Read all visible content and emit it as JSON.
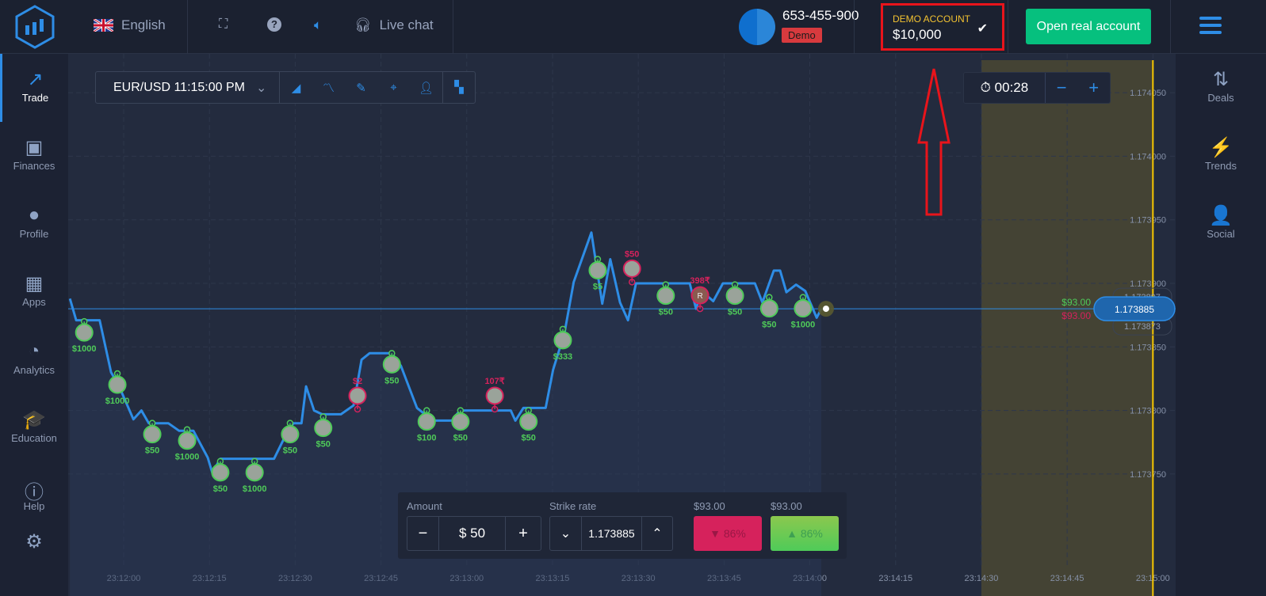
{
  "header": {
    "language": "English",
    "live_chat": "Live chat",
    "account_id": "653-455-900",
    "account_badge": "Demo",
    "demo_label": "DEMO ACCOUNT",
    "balance": "$10,000",
    "open_real": "Open real account"
  },
  "left_nav": [
    {
      "label": "Trade",
      "icon": "trend-up-icon",
      "glyph": "↗"
    },
    {
      "label": "Finances",
      "icon": "banknote-icon",
      "glyph": "▣"
    },
    {
      "label": "Profile",
      "icon": "user-icon",
      "glyph": "●"
    },
    {
      "label": "Apps",
      "icon": "grid-icon",
      "glyph": "▦"
    },
    {
      "label": "Analytics",
      "icon": "pie-chart-icon",
      "glyph": "◔"
    },
    {
      "label": "Education",
      "icon": "graduation-cap-icon",
      "glyph": "🎓"
    },
    {
      "label": "Help",
      "icon": "info-icon",
      "glyph": "ⓘ"
    }
  ],
  "right_nav": [
    {
      "label": "Deals",
      "icon": "arrows-up-down-icon",
      "glyph": "⇅"
    },
    {
      "label": "Trends",
      "icon": "lightning-icon",
      "glyph": "⚡"
    },
    {
      "label": "Social",
      "icon": "user-plus-icon",
      "glyph": "👤"
    }
  ],
  "toolbar": {
    "pair": "EUR/USD 11:15:00 PM"
  },
  "timer": {
    "value": "00:28",
    "minus": "−",
    "plus": "+"
  },
  "trade_panel": {
    "amount_label": "Amount",
    "amount": "$ 50",
    "strike_label": "Strike rate",
    "strike": "1.173885",
    "down_payout": "$93.00",
    "up_payout": "$93.00",
    "down_pct": "86%",
    "up_pct": "86%"
  },
  "colors": {
    "accent": "#2e8de6",
    "green": "#4fcb59",
    "red": "#d6225c",
    "expiry": "#f7c600"
  },
  "chart_data": {
    "type": "line",
    "x_ticks": [
      "23:12:00",
      "23:12:15",
      "23:12:30",
      "23:12:45",
      "23:13:00",
      "23:13:15",
      "23:13:30",
      "23:13:45",
      "23:14:00",
      "23:14:15",
      "23:14:30",
      "23:14:45",
      "23:15:00"
    ],
    "y_ticks": [
      "1.174050",
      "1.174000",
      "1.173950",
      "1.173900",
      "1.173850",
      "1.173800",
      "1.173750"
    ],
    "current_price": "1.173885",
    "upper_strike": "1.173897",
    "lower_strike": "1.173873",
    "up_payout": "$93.00",
    "down_payout": "$93.00",
    "expiry_time": "23:15:00",
    "purchase_zone_start": "23:14:30",
    "series": [
      [
        "23:11:50.6",
        1.173888
      ],
      [
        "23:11:51.7",
        1.173871
      ],
      [
        "23:11:55.8",
        1.173871
      ],
      [
        "23:11:57.8",
        1.17383
      ],
      [
        "23:11:59.2",
        1.173819
      ],
      [
        "23:12:01.7",
        1.173793
      ],
      [
        "23:12:03.1",
        1.1738
      ],
      [
        "23:12:04.4",
        1.17379
      ],
      [
        "23:12:07.8",
        1.17379
      ],
      [
        "23:12:09.7",
        1.173784
      ],
      [
        "23:12:12.2",
        1.173784
      ],
      [
        "23:12:14.7",
        1.173763
      ],
      [
        "23:12:15.5",
        1.173751
      ],
      [
        "23:12:16.9",
        1.173762
      ],
      [
        "23:12:26.3",
        1.173762
      ],
      [
        "23:12:28.6",
        1.173783
      ],
      [
        "23:12:29.7",
        1.17379
      ],
      [
        "23:12:31.1",
        1.17379
      ],
      [
        "23:12:31.9",
        1.173819
      ],
      [
        "23:12:33.3",
        1.1738
      ],
      [
        "23:12:34.7",
        1.173797
      ],
      [
        "23:12:38.0",
        1.173797
      ],
      [
        "23:12:40.2",
        1.173804
      ],
      [
        "23:12:41.6",
        1.17384
      ],
      [
        "23:12:43.0",
        1.173845
      ],
      [
        "23:12:46.9",
        1.173845
      ],
      [
        "23:12:48.5",
        1.173835
      ],
      [
        "23:12:51.3",
        1.173802
      ],
      [
        "23:12:54.1",
        1.173792
      ],
      [
        "23:12:57.4",
        1.173792
      ],
      [
        "23:12:58.8",
        1.1738
      ],
      [
        "23:13:07.7",
        1.1738
      ],
      [
        "23:13:08.5",
        1.173792
      ],
      [
        "23:13:09.9",
        1.173802
      ],
      [
        "23:13:13.8",
        1.173802
      ],
      [
        "23:13:15.1",
        1.173832
      ],
      [
        "23:13:17.1",
        1.173861
      ],
      [
        "23:13:18.7",
        1.173901
      ],
      [
        "23:13:21.8",
        1.17394
      ],
      [
        "23:13:23.7",
        1.173884
      ],
      [
        "23:13:25.1",
        1.173919
      ],
      [
        "23:13:26.8",
        1.173885
      ],
      [
        "23:13:28.2",
        1.173871
      ],
      [
        "23:13:29.6",
        1.1739
      ],
      [
        "23:13:39.0",
        1.1739
      ],
      [
        "23:13:40.1",
        1.17388
      ],
      [
        "23:13:41.1",
        1.173894
      ],
      [
        "23:13:43.1",
        1.173886
      ],
      [
        "23:13:44.8",
        1.1739
      ],
      [
        "23:13:50.4",
        1.1739
      ],
      [
        "23:13:51.7",
        1.173885
      ],
      [
        "23:13:53.7",
        1.17391
      ],
      [
        "23:13:54.8",
        1.17391
      ],
      [
        "23:13:55.9",
        1.173893
      ],
      [
        "23:13:57.6",
        1.173899
      ],
      [
        "23:13:59.2",
        1.173894
      ],
      [
        "23:14:01.2",
        1.173873
      ],
      [
        "23:14:02.0",
        1.17388
      ]
    ],
    "trades": [
      {
        "time": "23:11:53.1",
        "price": 1.17387,
        "dir": "up",
        "label": "$1000"
      },
      {
        "time": "23:11:58.9",
        "price": 1.173829,
        "dir": "up",
        "label": "$1000"
      },
      {
        "time": "23:12:05.0",
        "price": 1.17379,
        "dir": "up",
        "label": "$50"
      },
      {
        "time": "23:12:11.1",
        "price": 1.173785,
        "dir": "up",
        "label": "$1000"
      },
      {
        "time": "23:12:16.9",
        "price": 1.17376,
        "dir": "up",
        "label": "$50"
      },
      {
        "time": "23:12:22.9",
        "price": 1.17376,
        "dir": "up",
        "label": "$1000"
      },
      {
        "time": "23:12:29.1",
        "price": 1.17379,
        "dir": "up",
        "label": "$50"
      },
      {
        "time": "23:12:34.9",
        "price": 1.173795,
        "dir": "up",
        "label": "$50"
      },
      {
        "time": "23:12:40.9",
        "price": 1.173801,
        "dir": "down",
        "label": "$2"
      },
      {
        "time": "23:12:46.9",
        "price": 1.173845,
        "dir": "up",
        "label": "$50"
      },
      {
        "time": "23:12:53.0",
        "price": 1.1738,
        "dir": "up",
        "label": "$100"
      },
      {
        "time": "23:12:58.9",
        "price": 1.1738,
        "dir": "up",
        "label": "$50"
      },
      {
        "time": "23:13:04.9",
        "price": 1.173801,
        "dir": "down",
        "label": "107₹"
      },
      {
        "time": "23:13:10.8",
        "price": 1.1738,
        "dir": "up",
        "label": "$50"
      },
      {
        "time": "23:13:16.8",
        "price": 1.173864,
        "dir": "up",
        "label": "$333"
      },
      {
        "time": "23:13:22.9",
        "price": 1.173919,
        "dir": "up",
        "label": "$5"
      },
      {
        "time": "23:13:28.9",
        "price": 1.173901,
        "dir": "down",
        "label": "$50"
      },
      {
        "time": "23:13:34.8",
        "price": 1.173899,
        "dir": "up",
        "label": "$50"
      },
      {
        "time": "23:13:40.8",
        "price": 1.17388,
        "dir": "down",
        "label": "398₹",
        "initial": "R"
      },
      {
        "time": "23:13:46.9",
        "price": 1.173899,
        "dir": "up",
        "label": "$50"
      },
      {
        "time": "23:13:52.9",
        "price": 1.173889,
        "dir": "up",
        "label": "$50"
      },
      {
        "time": "23:13:58.8",
        "price": 1.173889,
        "dir": "up",
        "label": "$1000"
      }
    ]
  }
}
